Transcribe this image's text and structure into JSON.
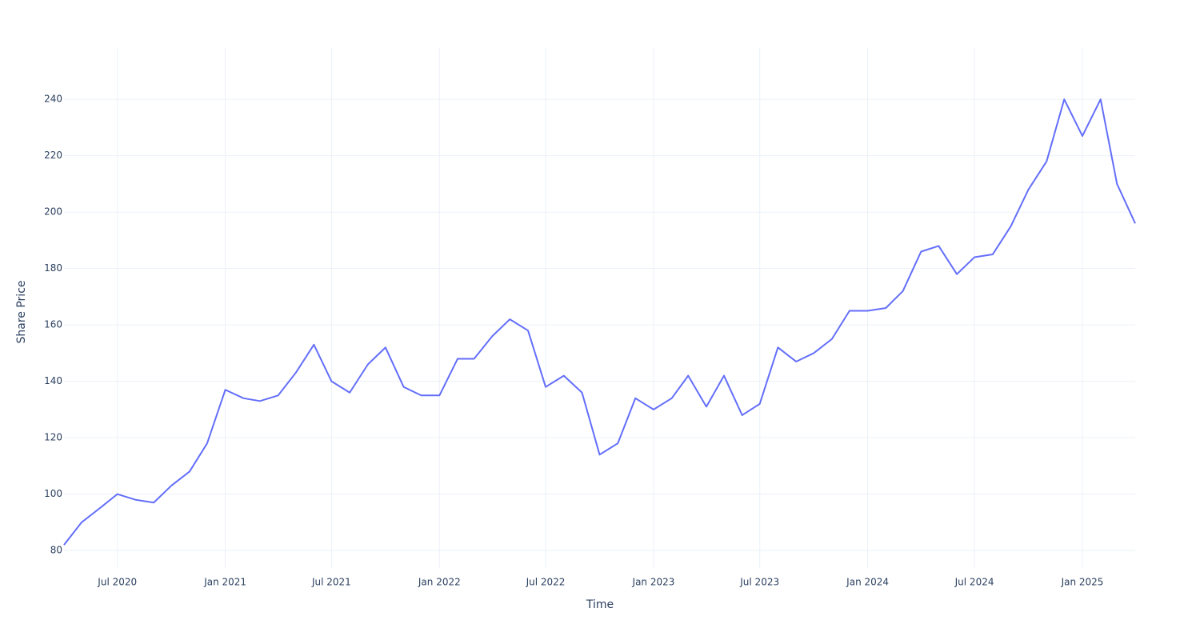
{
  "chart_data": {
    "type": "line",
    "x_label": "Time",
    "y_label": "Share Price",
    "grid": true,
    "x": [
      "2020-04",
      "2020-05",
      "2020-06",
      "2020-07",
      "2020-08",
      "2020-09",
      "2020-10",
      "2020-11",
      "2020-12",
      "2021-01",
      "2021-02",
      "2021-03",
      "2021-04",
      "2021-05",
      "2021-06",
      "2021-07",
      "2021-08",
      "2021-09",
      "2021-10",
      "2021-11",
      "2021-12",
      "2022-01",
      "2022-02",
      "2022-03",
      "2022-04",
      "2022-05",
      "2022-06",
      "2022-07",
      "2022-08",
      "2022-09",
      "2022-10",
      "2022-11",
      "2022-12",
      "2023-01",
      "2023-02",
      "2023-03",
      "2023-04",
      "2023-05",
      "2023-06",
      "2023-07",
      "2023-08",
      "2023-09",
      "2023-10",
      "2023-11",
      "2023-12",
      "2024-01",
      "2024-02",
      "2024-03",
      "2024-04",
      "2024-05",
      "2024-06",
      "2024-07",
      "2024-08",
      "2024-09",
      "2024-10",
      "2024-11",
      "2024-12",
      "2025-01",
      "2025-02",
      "2025-03",
      "2025-04"
    ],
    "series": [
      {
        "name": "Share Price",
        "color": "#636efa",
        "values": [
          82,
          90,
          95,
          100,
          98,
          97,
          103,
          108,
          118,
          137,
          134,
          133,
          135,
          143,
          153,
          140,
          136,
          146,
          152,
          138,
          135,
          135,
          148,
          148,
          156,
          162,
          158,
          138,
          142,
          136,
          114,
          118,
          134,
          130,
          134,
          142,
          131,
          142,
          128,
          132,
          152,
          147,
          150,
          155,
          165,
          165,
          166,
          172,
          186,
          188,
          178,
          184,
          185,
          195,
          208,
          218,
          240,
          227,
          240,
          210,
          196
        ]
      }
    ],
    "xlim": [
      "2020-04",
      "2025-04"
    ],
    "xticks": [
      {
        "value": "2020-07",
        "label": "Jul 2020"
      },
      {
        "value": "2021-01",
        "label": "Jan 2021"
      },
      {
        "value": "2021-07",
        "label": "Jul 2021"
      },
      {
        "value": "2022-01",
        "label": "Jan 2022"
      },
      {
        "value": "2022-07",
        "label": "Jul 2022"
      },
      {
        "value": "2023-01",
        "label": "Jan 2023"
      },
      {
        "value": "2023-07",
        "label": "Jul 2023"
      },
      {
        "value": "2024-01",
        "label": "Jan 2024"
      },
      {
        "value": "2024-07",
        "label": "Jul 2024"
      },
      {
        "value": "2025-01",
        "label": "Jan 2025"
      }
    ],
    "ylim": [
      73.8,
      258.2
    ],
    "yticks": [
      80,
      100,
      120,
      140,
      160,
      180,
      200,
      220,
      240
    ]
  }
}
